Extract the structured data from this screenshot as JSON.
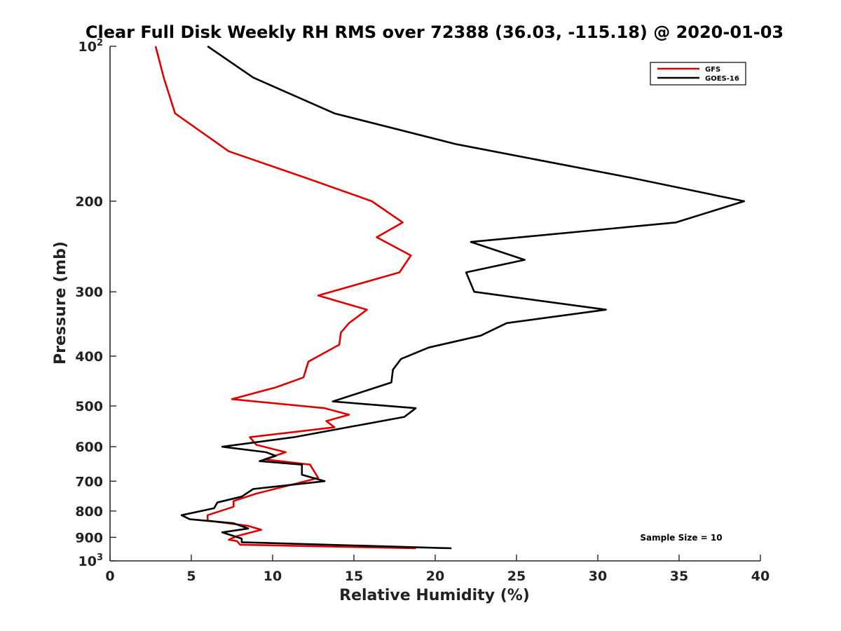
{
  "chart_data": {
    "type": "line",
    "title": "Clear Full Disk Weekly RH RMS over 72388 (36.03, -115.18) @ 2020-01-03",
    "xlabel": "Relative Humidity (%)",
    "ylabel": "Pressure (mb)",
    "xlim": [
      0,
      40
    ],
    "ylim": [
      100,
      1000
    ],
    "y_scale": "log",
    "y_reversed": true,
    "x_ticks": [
      0,
      5,
      10,
      15,
      20,
      25,
      30,
      35,
      40
    ],
    "x_tick_labels": [
      "0",
      "5",
      "10",
      "15",
      "20",
      "25",
      "30",
      "35",
      "40"
    ],
    "y_ticks": [
      200,
      300,
      400,
      500,
      600,
      700,
      800,
      900
    ],
    "y_tick_labels": [
      "200",
      "300",
      "400",
      "500",
      "600",
      "700",
      "800",
      "900"
    ],
    "y_endpoint_labels": [
      {
        "value": 100,
        "base": "10",
        "exp": "2"
      },
      {
        "value": 1000,
        "base": "10",
        "exp": "3"
      }
    ],
    "grid": false,
    "legend_position": "top-right",
    "series": [
      {
        "name": "GFS",
        "color": "#e00000",
        "points": [
          [
            2.8,
            100
          ],
          [
            3.3,
            115
          ],
          [
            4.0,
            135
          ],
          [
            7.3,
            160
          ],
          [
            12.0,
            180
          ],
          [
            16.1,
            200
          ],
          [
            18.0,
            220
          ],
          [
            16.4,
            235
          ],
          [
            18.5,
            255
          ],
          [
            17.8,
            275
          ],
          [
            12.8,
            305
          ],
          [
            15.8,
            325
          ],
          [
            14.7,
            345
          ],
          [
            14.2,
            360
          ],
          [
            14.1,
            380
          ],
          [
            12.2,
            410
          ],
          [
            11.9,
            440
          ],
          [
            10.2,
            460
          ],
          [
            7.5,
            485
          ],
          [
            13.2,
            505
          ],
          [
            14.7,
            520
          ],
          [
            13.3,
            535
          ],
          [
            13.8,
            550
          ],
          [
            8.6,
            575
          ],
          [
            9.0,
            595
          ],
          [
            10.8,
            615
          ],
          [
            9.5,
            635
          ],
          [
            12.3,
            650
          ],
          [
            12.8,
            690
          ],
          [
            9.0,
            740
          ],
          [
            7.6,
            765
          ],
          [
            7.6,
            785
          ],
          [
            6.0,
            815
          ],
          [
            6.0,
            835
          ],
          [
            8.5,
            855
          ],
          [
            9.3,
            870
          ],
          [
            7.8,
            895
          ],
          [
            7.3,
            910
          ],
          [
            7.8,
            915
          ],
          [
            8.0,
            930
          ],
          [
            18.8,
            945
          ]
        ]
      },
      {
        "name": "GOES-16",
        "color": "#000000",
        "points": [
          [
            6.0,
            100
          ],
          [
            8.8,
            115
          ],
          [
            13.8,
            135
          ],
          [
            21.3,
            155
          ],
          [
            32.0,
            180
          ],
          [
            39.0,
            200
          ],
          [
            34.8,
            220
          ],
          [
            22.2,
            240
          ],
          [
            25.5,
            260
          ],
          [
            21.9,
            275
          ],
          [
            22.4,
            300
          ],
          [
            30.5,
            325
          ],
          [
            24.4,
            345
          ],
          [
            22.8,
            365
          ],
          [
            19.6,
            385
          ],
          [
            17.9,
            405
          ],
          [
            17.4,
            425
          ],
          [
            17.3,
            450
          ],
          [
            13.7,
            490
          ],
          [
            18.8,
            505
          ],
          [
            18.1,
            525
          ],
          [
            11.3,
            575
          ],
          [
            6.9,
            600
          ],
          [
            9.6,
            615
          ],
          [
            10.2,
            625
          ],
          [
            9.2,
            640
          ],
          [
            11.8,
            650
          ],
          [
            11.8,
            680
          ],
          [
            13.2,
            700
          ],
          [
            8.8,
            725
          ],
          [
            8.1,
            750
          ],
          [
            6.6,
            770
          ],
          [
            6.4,
            790
          ],
          [
            4.4,
            815
          ],
          [
            4.9,
            830
          ],
          [
            7.6,
            845
          ],
          [
            8.5,
            865
          ],
          [
            6.9,
            880
          ],
          [
            8.1,
            905
          ],
          [
            8.1,
            920
          ],
          [
            21.0,
            945
          ]
        ]
      }
    ],
    "annotations": [
      {
        "text": "Sample Size = 10"
      }
    ]
  }
}
